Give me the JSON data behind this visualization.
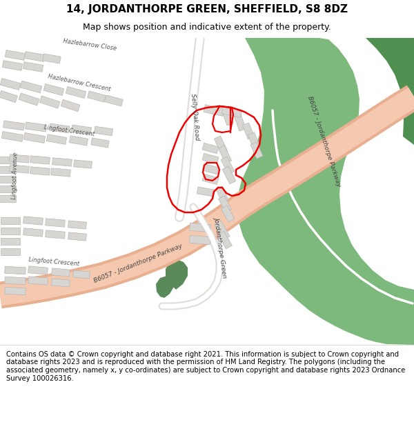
{
  "title": "14, JORDANTHORPE GREEN, SHEFFIELD, S8 8DZ",
  "subtitle": "Map shows position and indicative extent of the property.",
  "footer": "Contains OS data © Crown copyright and database right 2021. This information is subject to Crown copyright and database rights 2023 and is reproduced with the permission of HM Land Registry. The polygons (including the associated geometry, namely x, y co-ordinates) are subject to Crown copyright and database rights 2023 Ordnance Survey 100026316.",
  "bg_color": "#f2f0ec",
  "road_color": "#f5c9b0",
  "road_edge_color": "#e8b090",
  "green_color": "#7db87d",
  "green_dark_color": "#4f8f4f",
  "green_small_color": "#5a8a5a",
  "building_color": "#d8d6d2",
  "building_edge_color": "#b8b6b2",
  "white_road_color": "#ffffff",
  "white_road_edge": "#e0ddd8",
  "red_color": "#ee0000",
  "label_color": "#444444",
  "street_color": "#555555",
  "title_fontsize": 11,
  "subtitle_fontsize": 9,
  "footer_fontsize": 7.2,
  "map_border_color": "#bbbbbb"
}
